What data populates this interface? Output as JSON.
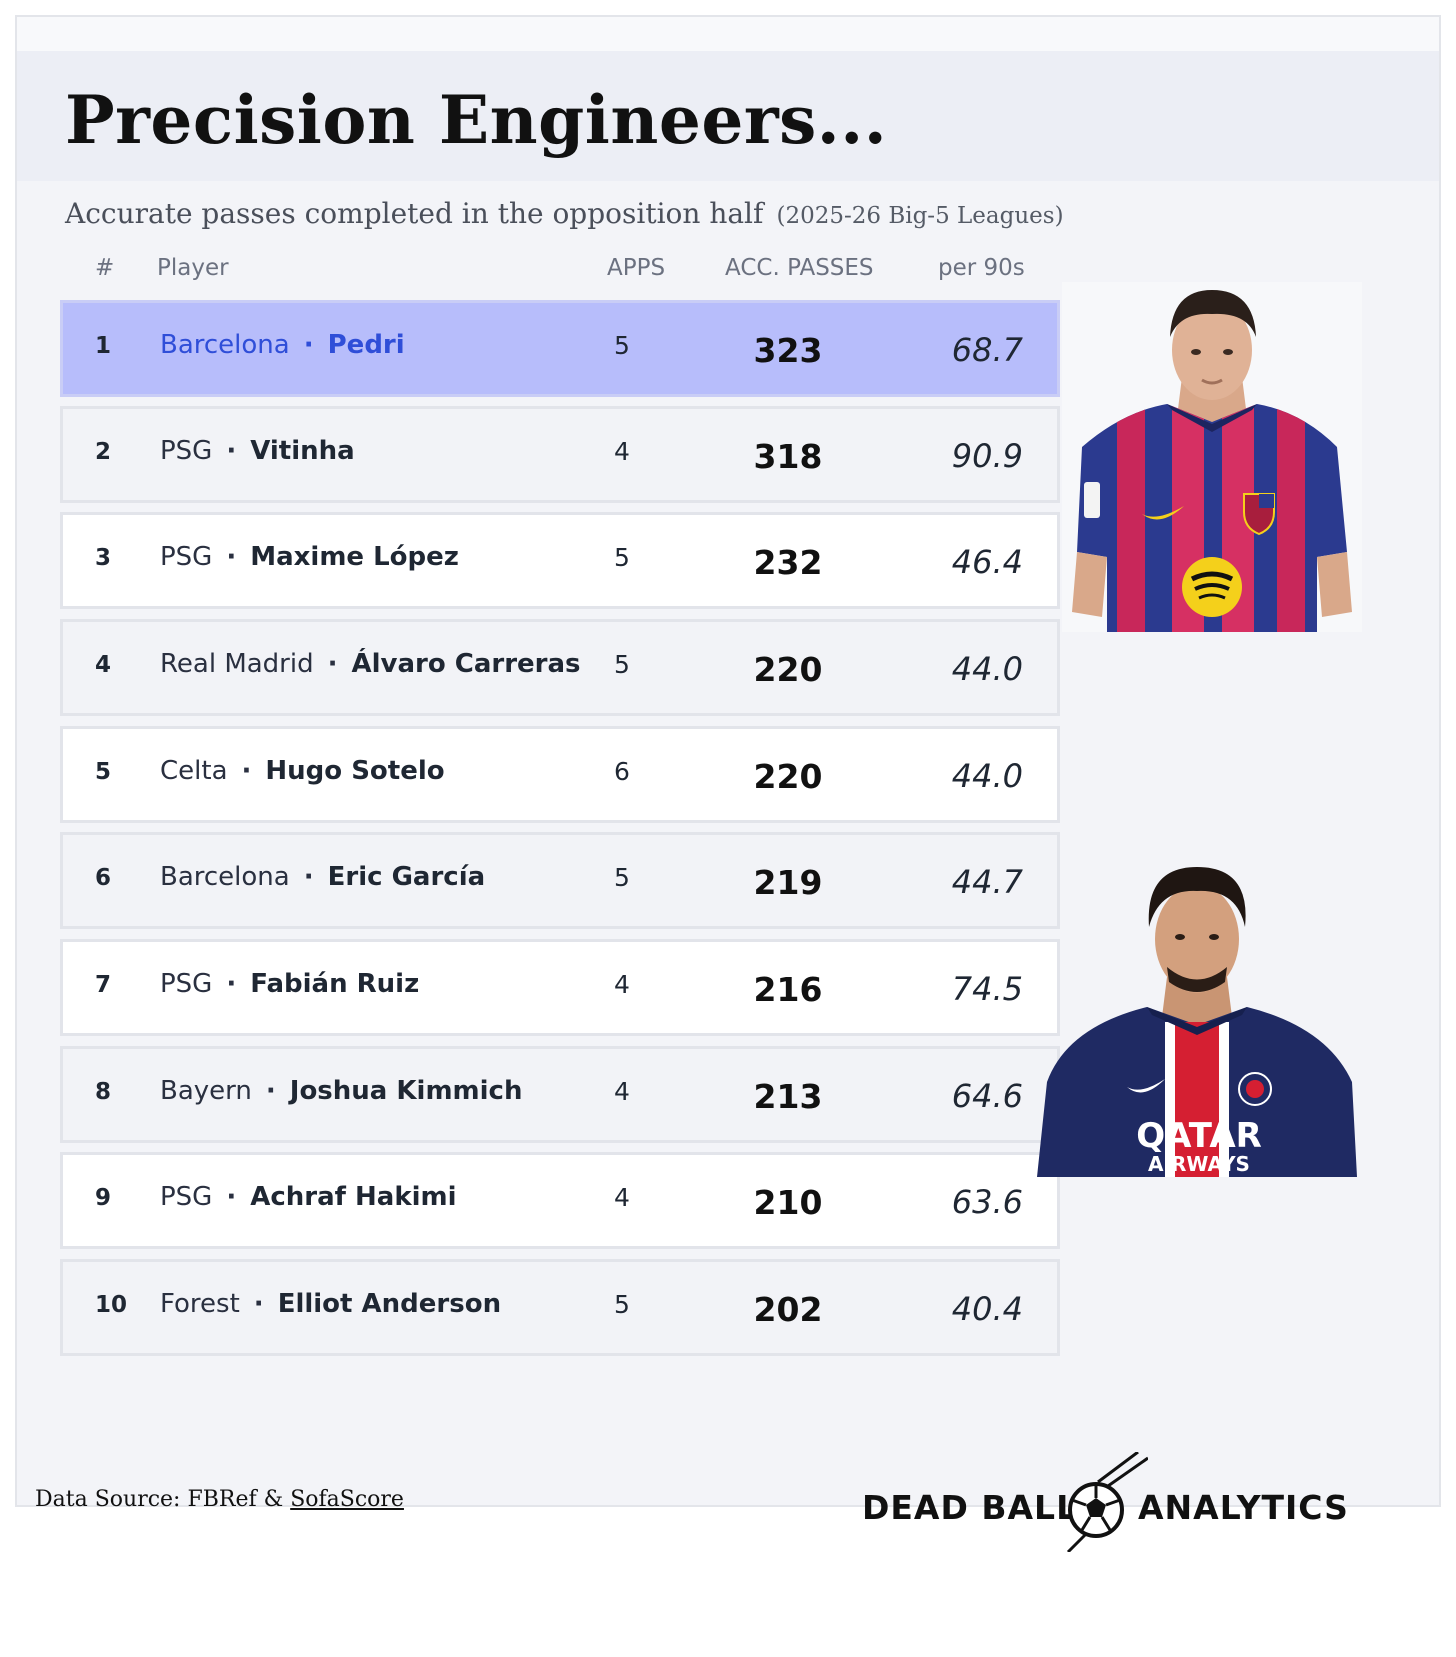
{
  "title": "Precision Engineers...",
  "subtitle": "Accurate passes completed in the opposition half",
  "season": "(2025-26 Big-5 Leagues)",
  "columns": {
    "rank": "#",
    "player": "Player",
    "apps": "APPS",
    "acc_passes": "ACC. PASSES",
    "per90": "per 90s"
  },
  "rows": [
    {
      "rank": "1",
      "team": "Barcelona",
      "player": "Pedri",
      "apps": "5",
      "acc_passes": "323",
      "per90": "68.7"
    },
    {
      "rank": "2",
      "team": "PSG",
      "player": "Vitinha",
      "apps": "4",
      "acc_passes": "318",
      "per90": "90.9"
    },
    {
      "rank": "3",
      "team": "PSG",
      "player": "Maxime López",
      "apps": "5",
      "acc_passes": "232",
      "per90": "46.4"
    },
    {
      "rank": "4",
      "team": "Real Madrid",
      "player": "Álvaro Carreras",
      "apps": "5",
      "acc_passes": "220",
      "per90": "44.0"
    },
    {
      "rank": "5",
      "team": "Celta",
      "player": "Hugo Sotelo",
      "apps": "6",
      "acc_passes": "220",
      "per90": "44.0"
    },
    {
      "rank": "6",
      "team": "Barcelona",
      "player": "Eric García",
      "apps": "5",
      "acc_passes": "219",
      "per90": "44.7"
    },
    {
      "rank": "7",
      "team": "PSG",
      "player": "Fabián Ruiz",
      "apps": "4",
      "acc_passes": "216",
      "per90": "74.5"
    },
    {
      "rank": "8",
      "team": "Bayern",
      "player": "Joshua Kimmich",
      "apps": "4",
      "acc_passes": "213",
      "per90": "64.6"
    },
    {
      "rank": "9",
      "team": "PSG",
      "player": "Achraf Hakimi",
      "apps": "4",
      "acc_passes": "210",
      "per90": "63.6"
    },
    {
      "rank": "10",
      "team": "Forest",
      "player": "Elliot Anderson",
      "apps": "5",
      "acc_passes": "202",
      "per90": "40.4"
    }
  ],
  "separator": "·",
  "portraits": {
    "first": {
      "icon": "player-portrait-barcelona-icon",
      "shirt_text": ""
    },
    "second": {
      "icon": "player-portrait-psg-icon",
      "shirt_text_1": "QATAR",
      "shirt_text_2": "AIRWAYS"
    }
  },
  "footer": {
    "source_prefix": "Data Source: FBRef & ",
    "source_link": "SofaScore",
    "brand_left": "DEAD BALL",
    "brand_right": "ANALYTICS",
    "brand_icon": "soccer-ball-icon"
  },
  "colors": {
    "highlight_row": "#b7bdfb",
    "highlight_text": "#2f4ed8",
    "title_band": "#eceef5"
  }
}
